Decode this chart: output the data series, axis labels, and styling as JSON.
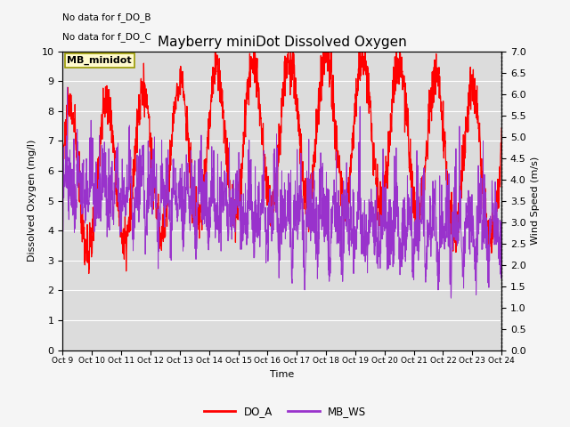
{
  "title": "Mayberry miniDot Dissolved Oxygen",
  "xlabel": "Time",
  "ylabel_left": "Dissolved Oxygen (mg/l)",
  "ylabel_right": "Wind Speed (m/s)",
  "annotation1": "No data for f_DO_B",
  "annotation2": "No data for f_DO_C",
  "legend_box_label": "MB_minidot",
  "ylim_left": [
    0.0,
    10.0
  ],
  "ylim_right": [
    0.0,
    7.0
  ],
  "left_yticks": [
    0.0,
    1.0,
    2.0,
    3.0,
    4.0,
    5.0,
    6.0,
    7.0,
    8.0,
    9.0,
    10.0
  ],
  "right_yticks": [
    0.0,
    0.5,
    1.0,
    1.5,
    2.0,
    2.5,
    3.0,
    3.5,
    4.0,
    4.5,
    5.0,
    5.5,
    6.0,
    6.5,
    7.0
  ],
  "xtick_labels": [
    "Oct 9",
    "Oct 10",
    "Oct 11",
    "Oct 12",
    "Oct 13",
    "Oct 14",
    "Oct 15",
    "Oct 16",
    "Oct 17",
    "Oct 18",
    "Oct 19",
    "Oct 20",
    "Oct 21",
    "Oct 22",
    "Oct 23",
    "Oct 24"
  ],
  "color_DO_A": "#FF0000",
  "color_MB_WS": "#9932CC",
  "legend_DO_A": "DO_A",
  "legend_MB_WS": "MB_WS",
  "bg_color": "#DCDCDC",
  "fig_color": "#F5F5F5",
  "grid_color": "#FFFFFF",
  "title_fontsize": 11,
  "axis_label_fontsize": 8,
  "tick_fontsize": 8,
  "annot_fontsize": 7.5
}
